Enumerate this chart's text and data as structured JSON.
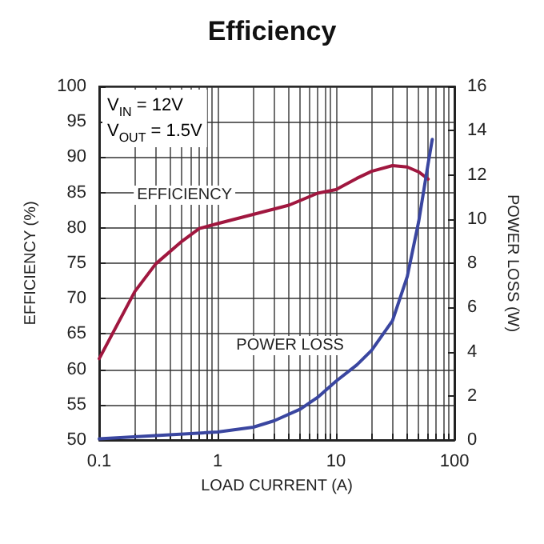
{
  "chart_data": {
    "type": "line",
    "title": "Efficiency",
    "xlabel": "LOAD CURRENT (A)",
    "ylabel": "EFFICIENCY (%)",
    "y2label": "POWER LOSS (W)",
    "annotations": [
      "V$_{IN}$ = 12V",
      "V$_{OUT}$ = 1.5V"
    ],
    "log": "x",
    "grid": true,
    "line_style": "solid",
    "xlim": [
      0.1,
      100
    ],
    "xticks": [
      0.1,
      {
        "value": 0.2,
        "label": null
      },
      {
        "value": 0.3,
        "label": null
      },
      {
        "value": 0.4,
        "label": null
      },
      {
        "value": 0.5,
        "label": null
      },
      {
        "value": 0.6,
        "label": null
      },
      {
        "value": 0.7,
        "label": null
      },
      {
        "value": 0.8,
        "label": null
      },
      {
        "value": 0.9,
        "label": null
      },
      1,
      {
        "value": 2,
        "label": null
      },
      {
        "value": 3,
        "label": null
      },
      {
        "value": 4,
        "label": null
      },
      {
        "value": 5,
        "label": null
      },
      {
        "value": 6,
        "label": null
      },
      {
        "value": 7,
        "label": null
      },
      {
        "value": 8,
        "label": null
      },
      {
        "value": 9,
        "label": null
      },
      10,
      {
        "value": 20,
        "label": null
      },
      {
        "value": 30,
        "label": null
      },
      {
        "value": 40,
        "label": null
      },
      {
        "value": 50,
        "label": null
      },
      {
        "value": 60,
        "label": null
      },
      {
        "value": 70,
        "label": null
      },
      {
        "value": 80,
        "label": null
      },
      {
        "value": 90,
        "label": null
      },
      100
    ],
    "ylim": [
      50,
      100
    ],
    "yticks": [
      50,
      55,
      60,
      65,
      70,
      75,
      80,
      85,
      90,
      95,
      100
    ],
    "y2lim": [
      0,
      16
    ],
    "y2ticks": [
      0,
      2,
      4,
      6,
      8,
      10,
      12,
      14,
      16
    ],
    "series": [
      {
        "name": "EFFICIENCY",
        "color": "#a0173f",
        "x": [
          0.1,
          0.2,
          0.3,
          0.5,
          0.7,
          1,
          2,
          4,
          7,
          10,
          15,
          20,
          30,
          40,
          50,
          60
        ],
        "values": [
          61.5,
          71,
          74.9,
          78.1,
          79.9,
          80.6,
          81.9,
          83.2,
          84.9,
          85.4,
          87,
          88,
          88.8,
          88.6,
          87.9,
          86.9
        ]
      },
      {
        "name": "POWER LOSS",
        "color": "#3a46a0",
        "axis": "y2",
        "x": [
          0.1,
          1,
          2,
          3,
          5,
          7,
          10,
          15,
          20,
          30,
          40,
          50,
          60,
          65
        ],
        "values": [
          0.05,
          0.36,
          0.58,
          0.87,
          1.4,
          1.93,
          2.66,
          3.4,
          4.06,
          5.4,
          7.4,
          9.9,
          12.5,
          13.6
        ]
      }
    ]
  }
}
